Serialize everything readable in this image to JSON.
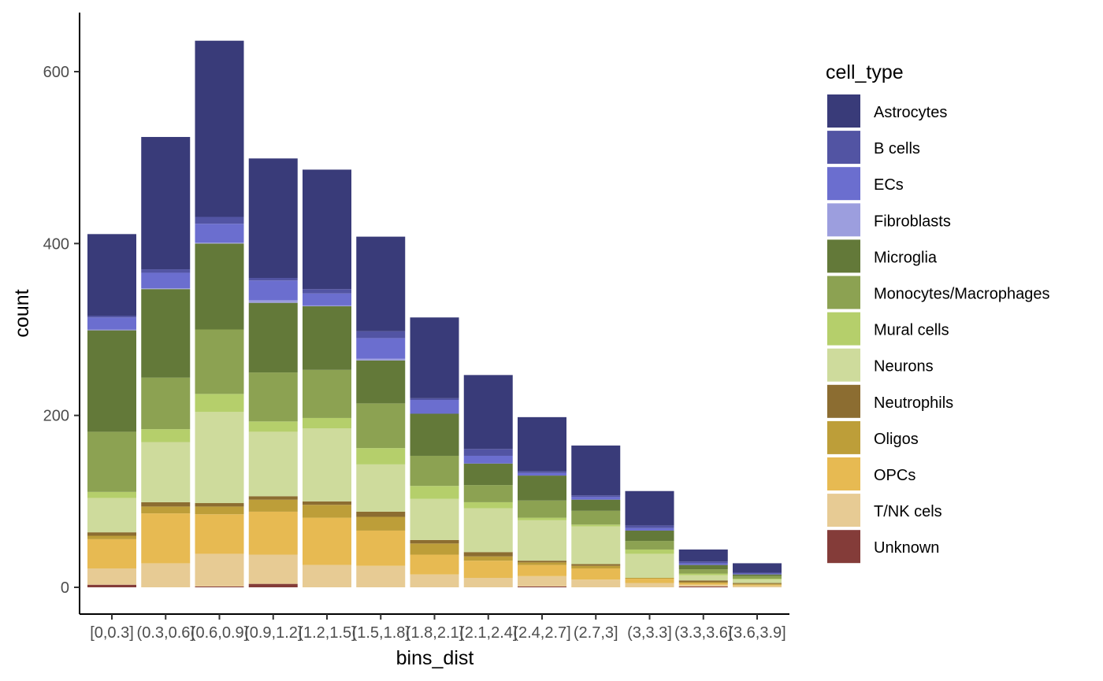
{
  "chart_data": {
    "type": "bar",
    "stacked": true,
    "xlabel": "bins_dist",
    "ylabel": "count",
    "ylim": [
      0,
      665
    ],
    "yticks": [
      0,
      200,
      400,
      600
    ],
    "grid": false,
    "legend": {
      "title": "cell_type",
      "placement": "right"
    },
    "categories": [
      "[0,0.3]",
      "(0.3,0.6]",
      "(0.6,0.9]",
      "(0.9,1.2]",
      "(1.2,1.5]",
      "(1.5,1.8]",
      "(1.8,2.1]",
      "(2.1,2.4]",
      "(2.4,2.7]",
      "(2.7,3]",
      "(3,3.3]",
      "(3.3,3.6]",
      "(3.6,3.9]"
    ],
    "series": [
      {
        "name": "Astrocytes",
        "color": "#393B79",
        "values": [
          95,
          154,
          205,
          139,
          139,
          110,
          94,
          86,
          63,
          58,
          40,
          14,
          11
        ]
      },
      {
        "name": "B cells",
        "color": "#5254A3",
        "values": [
          2,
          4,
          8,
          3,
          5,
          8,
          2,
          8,
          2,
          2,
          3,
          2,
          1
        ]
      },
      {
        "name": "ECs",
        "color": "#6B6ECF",
        "values": [
          14,
          18,
          22,
          23,
          14,
          24,
          16,
          9,
          3,
          3,
          3,
          2,
          1
        ]
      },
      {
        "name": "Fibroblasts",
        "color": "#9C9EDE",
        "values": [
          1,
          1,
          1,
          3,
          1,
          2,
          0,
          0,
          0,
          0,
          0,
          0,
          0
        ]
      },
      {
        "name": "Microglia",
        "color": "#637939",
        "values": [
          118,
          103,
          100,
          81,
          74,
          50,
          49,
          25,
          29,
          13,
          12,
          5,
          2
        ]
      },
      {
        "name": "Monocytes/Macrophages",
        "color": "#8CA252",
        "values": [
          70,
          60,
          75,
          57,
          56,
          52,
          35,
          20,
          20,
          16,
          10,
          5,
          3
        ]
      },
      {
        "name": "Mural cells",
        "color": "#B5CF6B",
        "values": [
          7,
          15,
          21,
          12,
          12,
          19,
          15,
          7,
          3,
          2,
          5,
          2,
          1
        ]
      },
      {
        "name": "Neurons",
        "color": "#CEDB9C",
        "values": [
          40,
          70,
          106,
          75,
          85,
          55,
          48,
          51,
          47,
          44,
          28,
          6,
          4
        ]
      },
      {
        "name": "Neutrophils",
        "color": "#8C6D31",
        "values": [
          4,
          5,
          4,
          4,
          4,
          6,
          4,
          5,
          2,
          2,
          0,
          2,
          1
        ]
      },
      {
        "name": "Oligos",
        "color": "#BD9E39",
        "values": [
          4,
          8,
          9,
          14,
          15,
          16,
          13,
          5,
          3,
          3,
          1,
          1,
          1
        ]
      },
      {
        "name": "OPCs",
        "color": "#E7BA52",
        "values": [
          34,
          58,
          46,
          50,
          55,
          41,
          23,
          20,
          13,
          13,
          5,
          2,
          1
        ]
      },
      {
        "name": "T/NK cels",
        "color": "#E7CB94",
        "values": [
          19,
          28,
          38,
          34,
          26,
          25,
          15,
          11,
          12,
          9,
          5,
          2,
          2
        ]
      },
      {
        "name": "Unknown",
        "color": "#843C39",
        "values": [
          3,
          0,
          1,
          4,
          0,
          0,
          0,
          0,
          1,
          0,
          0,
          1,
          0
        ]
      }
    ]
  }
}
